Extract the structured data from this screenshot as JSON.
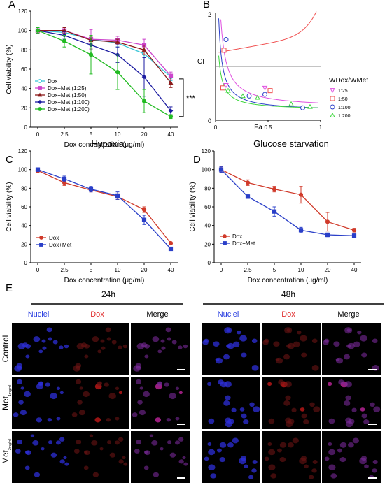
{
  "panel_letters": {
    "a": "A",
    "b": "B",
    "c": "C",
    "d": "D",
    "e": "E"
  },
  "panel_a": {
    "ylabel": "Cell viability (%)",
    "xlabel": "Dox concentration (μg/ml)",
    "yticks": [
      "0",
      "20",
      "40",
      "60",
      "80",
      "100",
      "120"
    ],
    "xticks": [
      "0",
      "2.5",
      "5",
      "10",
      "20",
      "40"
    ],
    "significance": "***",
    "legend": [
      "Dox",
      "Dox+Met (1:25)",
      "Dox+Met (1:50)",
      "Dox+Met (1:100)",
      "Dox+Met (1:200)"
    ]
  },
  "panel_b": {
    "ylabel": "CI",
    "xlabel": "Fa",
    "ytick_top": "2",
    "ytick_zero": "0",
    "xticks": [
      "0",
      "0.5",
      "1"
    ],
    "legend_title": "WDox/WMet",
    "legend": [
      "1:25",
      "1:50",
      "1:100",
      "1:200"
    ]
  },
  "panel_c": {
    "title": "Hypoxia",
    "ylabel": "Cell viability (%)",
    "xlabel": "Dox concentration (μg/ml)",
    "yticks": [
      "0",
      "20",
      "40",
      "60",
      "80",
      "100",
      "120"
    ],
    "xticks": [
      "0",
      "2.5",
      "5",
      "10",
      "20",
      "40"
    ],
    "legend": [
      "Dox",
      "Dox+Met"
    ]
  },
  "panel_d": {
    "title": "Glucose starvation",
    "ylabel": "Cell viability (%)",
    "xlabel": "Dox concentration (μg/ml)",
    "yticks": [
      "0",
      "20",
      "40",
      "60",
      "80",
      "100",
      "120"
    ],
    "xticks": [
      "0",
      "2.5",
      "5",
      "10",
      "20",
      "40"
    ],
    "legend": [
      "Dox",
      "Dox+Met"
    ]
  },
  "panel_e": {
    "time_24": "24h",
    "time_48": "48h",
    "columns": [
      "Nuclei",
      "Dox",
      "Merge"
    ],
    "rows": [
      "Control",
      "Met",
      "Met"
    ],
    "row_subs": [
      "",
      "1mg/ml",
      "2mg/ml"
    ]
  },
  "colors": {
    "dox": "#3cc6d8",
    "met25": "#cc44cc",
    "met50": "#8b1a1a",
    "met100": "#1a1aa0",
    "met200": "#22bb22",
    "red": "#d03a2a",
    "blue": "#2a3fc8",
    "green": "#3dd63d",
    "pink": "#e050e0",
    "lightred": "#f05050"
  },
  "chart_data": [
    {
      "type": "line",
      "panel": "A",
      "categories": [
        "0",
        "2.5",
        "5",
        "10",
        "20",
        "40"
      ],
      "xlabel": "Dox concentration (μg/ml)",
      "ylabel": "Cell viability (%)",
      "ylim": [
        0,
        120
      ],
      "series": [
        {
          "name": "Dox",
          "values": [
            100,
            98,
            91,
            87,
            76,
            52
          ],
          "errors": [
            3,
            3,
            4,
            4,
            4,
            4
          ]
        },
        {
          "name": "Dox+Met (1:25)",
          "values": [
            100,
            100,
            91,
            90,
            85,
            53
          ],
          "errors": [
            3,
            3,
            10,
            4,
            6,
            4
          ]
        },
        {
          "name": "Dox+Met (1:50)",
          "values": [
            100,
            100,
            90,
            88,
            80,
            46
          ],
          "errors": [
            3,
            3,
            4,
            3,
            5,
            5
          ]
        },
        {
          "name": "Dox+Met (1:100)",
          "values": [
            100,
            95,
            85,
            75,
            52,
            17
          ],
          "errors": [
            3,
            4,
            5,
            8,
            20,
            4
          ]
        },
        {
          "name": "Dox+Met (1:200)",
          "values": [
            100,
            89,
            75,
            57,
            27,
            11
          ],
          "errors": [
            3,
            6,
            20,
            18,
            12,
            2
          ]
        }
      ],
      "annotation": "***"
    },
    {
      "type": "scatter",
      "panel": "B",
      "xlabel": "Fa",
      "ylabel": "CI",
      "xlim": [
        0,
        1
      ],
      "ylim": [
        0,
        2
      ],
      "series": [
        {
          "name": "1:25",
          "points": [
            [
              0.1,
              0.65
            ],
            [
              0.47,
              0.6
            ]
          ]
        },
        {
          "name": "1:50",
          "points": [
            [
              0.08,
              1.3
            ],
            [
              0.07,
              0.6
            ],
            [
              0.52,
              0.55
            ]
          ]
        },
        {
          "name": "1:100",
          "points": [
            [
              0.1,
              1.5
            ],
            [
              0.32,
              0.45
            ],
            [
              0.47,
              0.48
            ],
            [
              0.83,
              0.23
            ]
          ]
        },
        {
          "name": "1:200",
          "points": [
            [
              0.12,
              0.55
            ],
            [
              0.26,
              0.45
            ],
            [
              0.4,
              0.42
            ],
            [
              0.72,
              0.3
            ],
            [
              0.9,
              0.25
            ]
          ]
        }
      ],
      "reference_line": 1
    },
    {
      "type": "line",
      "panel": "C",
      "title": "Hypoxia",
      "categories": [
        "0",
        "2.5",
        "5",
        "10",
        "20",
        "40"
      ],
      "xlabel": "Dox concentration (μg/ml)",
      "ylabel": "Cell viability (%)",
      "ylim": [
        0,
        120
      ],
      "series": [
        {
          "name": "Dox",
          "values": [
            99,
            86,
            78,
            71,
            57,
            21
          ],
          "errors": [
            2,
            3,
            2,
            3,
            3,
            1
          ]
        },
        {
          "name": "Dox+Met",
          "values": [
            100,
            90,
            79,
            72,
            46,
            15
          ],
          "errors": [
            2,
            3,
            3,
            4,
            5,
            1
          ]
        }
      ]
    },
    {
      "type": "line",
      "panel": "D",
      "title": "Glucose starvation",
      "categories": [
        "0",
        "2.5",
        "5",
        "10",
        "20",
        "40"
      ],
      "xlabel": "Dox concentration (μg/ml)",
      "ylabel": "Cell viability (%)",
      "ylim": [
        0,
        120
      ],
      "series": [
        {
          "name": "Dox",
          "values": [
            100,
            86,
            79,
            73,
            44,
            35
          ],
          "errors": [
            3,
            3,
            3,
            9,
            10,
            2
          ]
        },
        {
          "name": "Dox+Met",
          "values": [
            100,
            71,
            55,
            35,
            30,
            29
          ],
          "errors": [
            3,
            2,
            5,
            3,
            2,
            2
          ]
        }
      ]
    }
  ]
}
